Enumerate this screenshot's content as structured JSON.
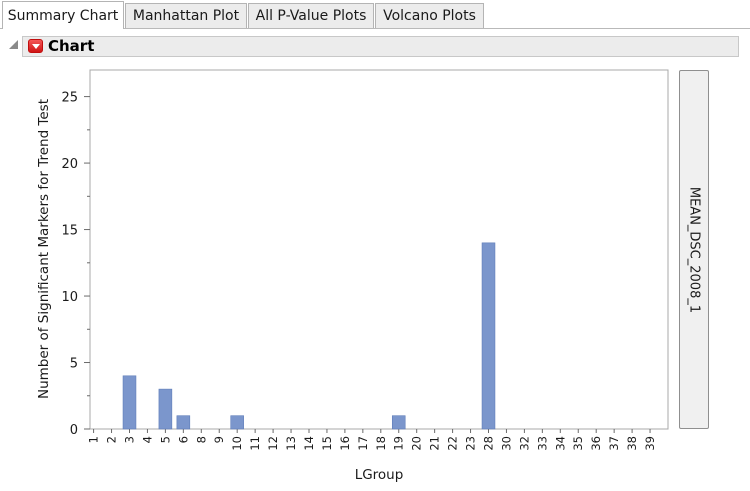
{
  "tabs": [
    {
      "label": "Summary Chart",
      "active": true
    },
    {
      "label": "Manhattan Plot",
      "active": false
    },
    {
      "label": "All P-Value Plots",
      "active": false
    },
    {
      "label": "Volcano Plots",
      "active": false
    }
  ],
  "outline": {
    "title": "Chart",
    "menu_icon": "red-triangle-menu-icon",
    "toggle_icon": "disclosure-triangle-icon"
  },
  "group_label": "MEAN_DSC_2008_1",
  "colors": {
    "bar": "#7b96cc",
    "bar_stroke": "#5f7db9",
    "menu_red": "#d11a1a",
    "tab_border": "#b4b4b4"
  },
  "chart_data": {
    "type": "bar",
    "title": "",
    "xlabel": "LGroup",
    "ylabel": "Number of Significant Markers for Trend Test",
    "ylim": [
      0,
      27
    ],
    "yticks": [
      0,
      5,
      10,
      15,
      20,
      25
    ],
    "grid": false,
    "categories": [
      "1",
      "2",
      "3",
      "4",
      "5",
      "6",
      "8",
      "9",
      "10",
      "11",
      "12",
      "13",
      "14",
      "15",
      "16",
      "17",
      "18",
      "19",
      "20",
      "21",
      "22",
      "23",
      "28",
      "30",
      "32",
      "33",
      "34",
      "35",
      "36",
      "37",
      "38",
      "39"
    ],
    "values": [
      0,
      0,
      4,
      0,
      3,
      1,
      0,
      0,
      1,
      0,
      0,
      0,
      0,
      0,
      0,
      0,
      0,
      1,
      0,
      0,
      0,
      0,
      14,
      0,
      0,
      0,
      0,
      0,
      0,
      0,
      0,
      0
    ]
  }
}
